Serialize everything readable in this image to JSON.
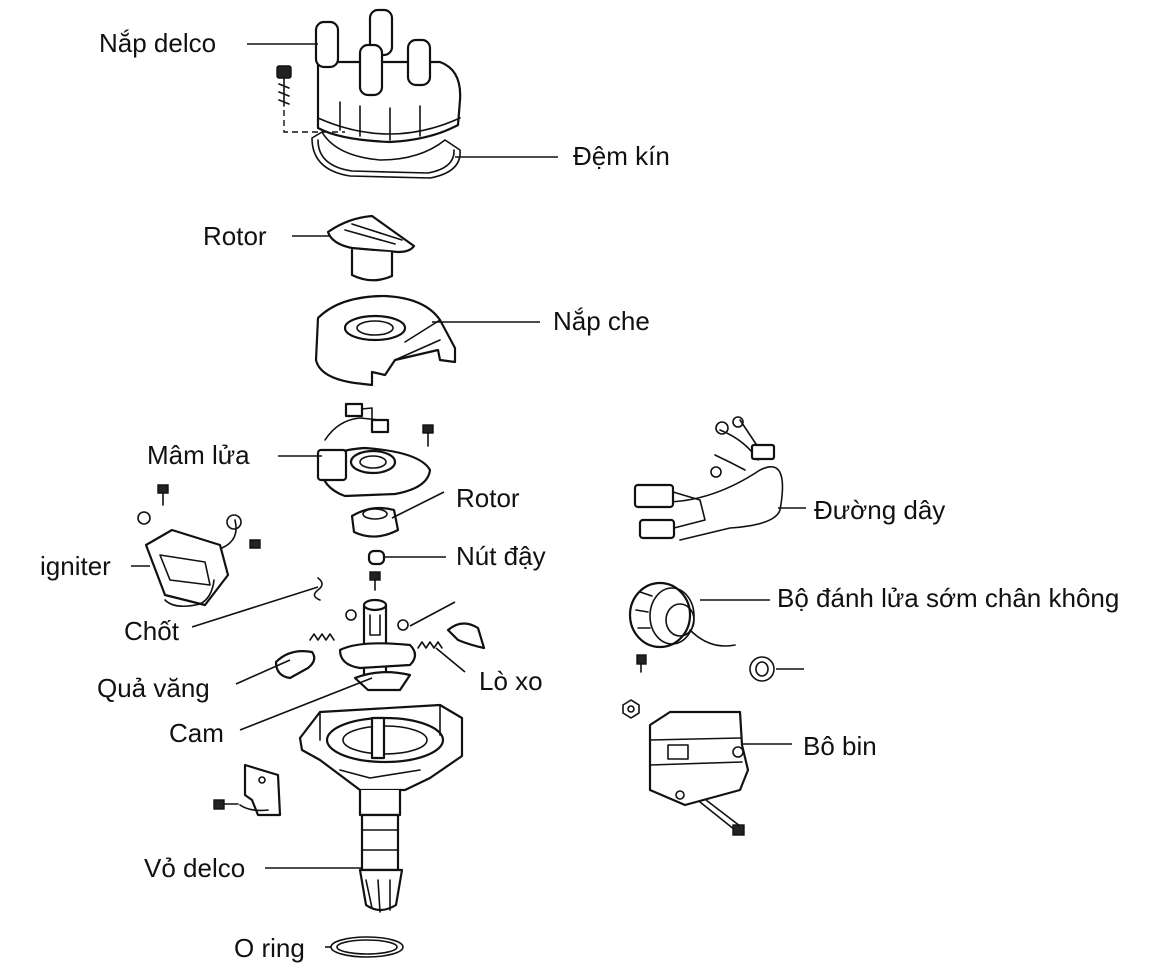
{
  "labels": {
    "nap_delco": "Nắp delco",
    "dem_kin": "Đệm kín",
    "rotor_top": "Rotor",
    "nap_che": "Nắp che",
    "mam_lua": "Mâm lửa",
    "rotor_mid": "Rotor",
    "nut_day": "Nút đậy",
    "duong_day": "Đường dây",
    "igniter": "igniter",
    "bo_danh_lua": "Bộ đánh lửa sớm chân không",
    "chot": "Chốt",
    "qua_vang": "Quả văng",
    "lo_xo": "Lò xo",
    "cam": "Cam",
    "bo_bin": "Bô bin",
    "vo_delco": "Vỏ delco",
    "o_ring": "O ring"
  }
}
